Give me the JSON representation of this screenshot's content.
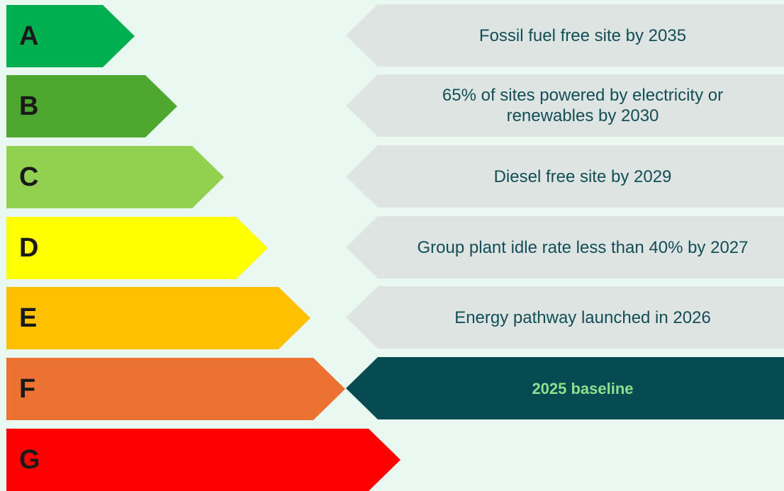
{
  "ratings": [
    {
      "letter": "A",
      "color": "#00b050"
    },
    {
      "letter": "B",
      "color": "#4ea72e"
    },
    {
      "letter": "C",
      "color": "#92d050"
    },
    {
      "letter": "D",
      "color": "#ffff00"
    },
    {
      "letter": "E",
      "color": "#ffc000"
    },
    {
      "letter": "F",
      "color": "#eb7232"
    },
    {
      "letter": "G",
      "color": "#ff0000"
    }
  ],
  "targets": [
    {
      "text": "Fossil fuel free site by 2035"
    },
    {
      "text": "65% of sites powered by electricity or renewables by 2030"
    },
    {
      "text": "Diesel free site by 2029"
    },
    {
      "text": "Group plant idle rate less than 40% by 2027"
    },
    {
      "text": "Energy pathway launched in 2026"
    },
    {
      "text": "2025 baseline",
      "highlight": true
    }
  ]
}
